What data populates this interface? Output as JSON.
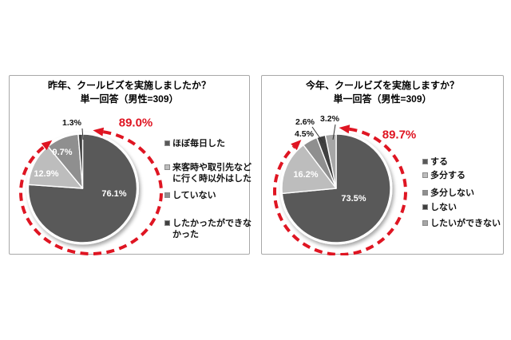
{
  "colors": {
    "highlight_red": "#df1522",
    "panel_border": "#a8a8a8",
    "slice_dark": "#595959",
    "slice_light": "#bdbdbd",
    "slice_medium": "#8f8f8f",
    "slice_darkest": "#404040",
    "slice_gray": "#a6a6a6"
  },
  "charts": [
    {
      "title_line1": "昨年、クールビズを実施しましたか？",
      "title_line2": "単一回答（男性=309）",
      "highlight_label": "89.0%",
      "legend_items": [
        {
          "lines": [
            "ほぼ毎日した"
          ]
        },
        {
          "lines": [
            "来客時や取引先など",
            "に行く時以外はした"
          ]
        },
        {
          "lines": [
            "していない"
          ]
        },
        {
          "lines": [
            "したかったができな",
            "かった"
          ]
        }
      ]
    },
    {
      "title_line1": "今年、クールビズを実施しますか？",
      "title_line2": "単一回答（男性=309）",
      "highlight_label": "89.7%",
      "legend_items": [
        {
          "lines": [
            "する"
          ]
        },
        {
          "lines": [
            "多分する"
          ]
        },
        {
          "lines": [
            "多分しない"
          ]
        },
        {
          "lines": [
            "しない"
          ]
        },
        {
          "lines": [
            "したいができない"
          ]
        }
      ]
    }
  ],
  "chart_data": [
    {
      "type": "pie",
      "title": "昨年、クールビズを実施しましたか？",
      "subtitle": "単一回答（男性=309）",
      "start_angle_deg": 0,
      "direction": "clockwise",
      "legend_position": "right",
      "slices": [
        {
          "label": "ほぼ毎日した",
          "value": 76.1,
          "value_label": "76.1%",
          "color": "#595959"
        },
        {
          "label": "来客時や取引先などに行く時以外はした",
          "value": 12.9,
          "value_label": "12.9%",
          "color": "#bdbdbd"
        },
        {
          "label": "していない",
          "value": 9.7,
          "value_label": "9.7%",
          "color": "#8f8f8f"
        },
        {
          "label": "したかったができなかった",
          "value": 1.3,
          "value_label": "1.3%",
          "color": "#404040"
        }
      ],
      "highlight": {
        "value": 89.0,
        "label": "89.0%",
        "color": "#df1522",
        "style": "dashed-arrow-circle"
      }
    },
    {
      "type": "pie",
      "title": "今年、クールビズを実施しますか？",
      "subtitle": "単一回答（男性=309）",
      "start_angle_deg": 0,
      "direction": "clockwise",
      "legend_position": "right",
      "slices": [
        {
          "label": "する",
          "value": 73.5,
          "value_label": "73.5%",
          "color": "#595959"
        },
        {
          "label": "多分する",
          "value": 16.2,
          "value_label": "16.2%",
          "color": "#bdbdbd"
        },
        {
          "label": "多分しない",
          "value": 4.5,
          "value_label": "4.5%",
          "color": "#8f8f8f"
        },
        {
          "label": "しない",
          "value": 2.6,
          "value_label": "2.6%",
          "color": "#404040"
        },
        {
          "label": "したいができない",
          "value": 3.2,
          "value_label": "3.2%",
          "color": "#a6a6a6"
        }
      ],
      "highlight": {
        "value": 89.7,
        "label": "89.7%",
        "color": "#df1522",
        "style": "dashed-arrow-circle"
      }
    }
  ]
}
